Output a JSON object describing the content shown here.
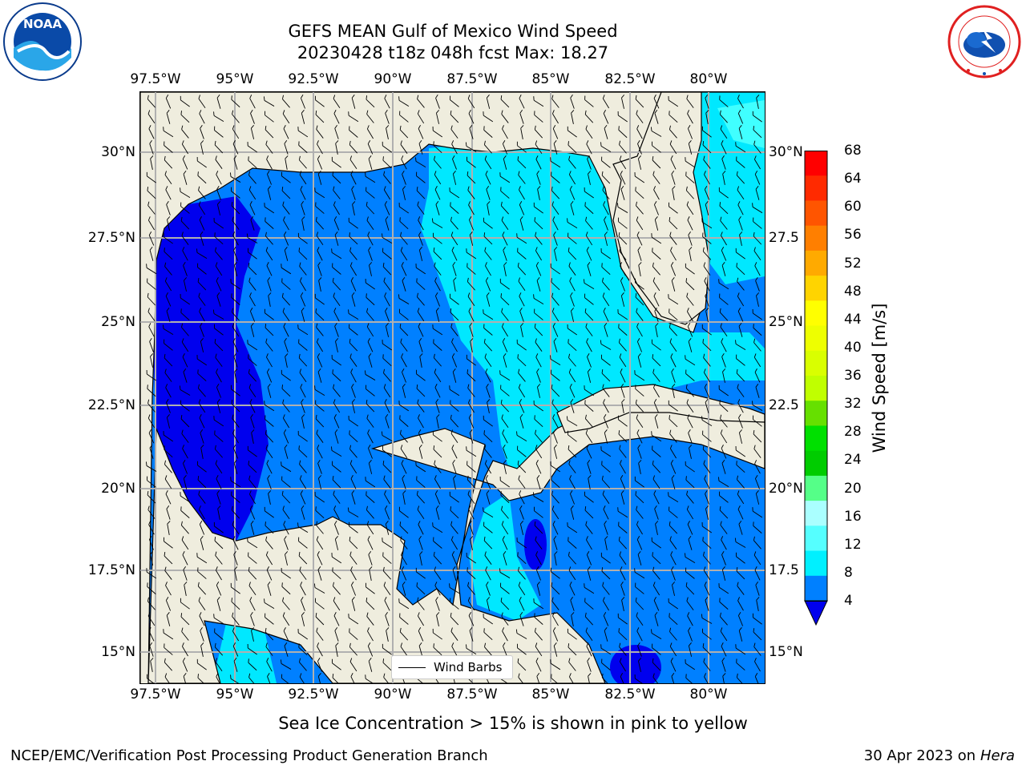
{
  "title": {
    "line1": "GEFS MEAN Gulf of Mexico Wind Speed",
    "line2": "20230428 t18z 048h fcst   Max: 18.27"
  },
  "logos": {
    "noaa": {
      "text": "NOAA",
      "ring": "NATIONAL OCEANIC AND ATMOSPHERIC ADMINISTRATION · U.S. DEPARTMENT OF COMMERCE"
    },
    "nws": {
      "ring": "NATIONAL WEATHER SERVICE"
    }
  },
  "map": {
    "lon_ticks": [
      "97.5°W",
      "95°W",
      "92.5°W",
      "90°W",
      "87.5°W",
      "85°W",
      "82.5°W",
      "80°W"
    ],
    "lat_ticks_left": [
      "30°N",
      "27.5°N",
      "25°N",
      "22.5°N",
      "20°N",
      "17.5°N",
      "15°N"
    ],
    "lat_ticks_right": [
      "30°N",
      "27.5",
      "25°N",
      "22.5",
      "20°N",
      "17.5",
      "15°N"
    ],
    "legend": "Wind Barbs",
    "colors": {
      "land": "#efedde",
      "c4": "#0000ee",
      "c8": "#0080ff",
      "c12": "#00e8ff",
      "c16": "#40ffff",
      "grid": "#b0b0b0",
      "coast": "#000000"
    }
  },
  "colorbar": {
    "label": "Wind Speed [m/s]",
    "ticks": [
      "68",
      "64",
      "60",
      "56",
      "52",
      "48",
      "44",
      "40",
      "36",
      "32",
      "28",
      "24",
      "20",
      "16",
      "12",
      "8",
      "4"
    ],
    "colors": [
      "#ff0000",
      "#ff2a00",
      "#ff5500",
      "#ff7f00",
      "#ffaa00",
      "#ffd400",
      "#ffff00",
      "#eeff00",
      "#d9ff00",
      "#c0ff00",
      "#66e000",
      "#00e000",
      "#00cc00",
      "#55ff88",
      "#aaffff",
      "#55ffff",
      "#00f0ff",
      "#0080ff"
    ],
    "under_color": "#0000ee"
  },
  "note": "Sea Ice Concentration > 15% is shown in pink to yellow",
  "footer": {
    "left": "NCEP/EMC/Verification Post Processing Product Generation Branch",
    "right_date": "30 Apr 2023 on ",
    "right_host": "Hera"
  }
}
